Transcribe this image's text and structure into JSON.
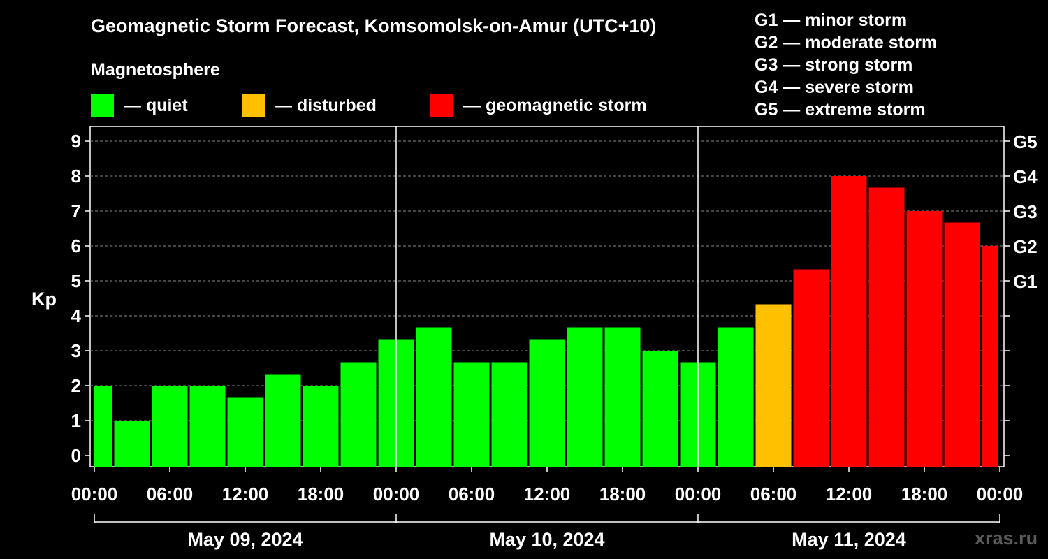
{
  "header": {
    "title": "Geomagnetic Storm Forecast, Komsomolsk-on-Amur (UTC+10)",
    "subtitle": "Magnetosphere"
  },
  "legend": [
    {
      "label": "— quiet",
      "color": "#00ff00"
    },
    {
      "label": "— disturbed",
      "color": "#ffc000"
    },
    {
      "label": "— geomagnetic storm",
      "color": "#ff0000"
    }
  ],
  "storm_levels": [
    "G1 — minor storm",
    "G2 — moderate storm",
    "G3 — strong storm",
    "G4 — severe storm",
    "G5 — extreme storm"
  ],
  "watermark": "xras.ru",
  "colors": {
    "quiet": "#00ff00",
    "disturbed": "#ffc000",
    "storm": "#ff0000",
    "background": "#000000",
    "axis": "#ffffff",
    "grid": "#888888"
  },
  "chart_data": {
    "type": "bar",
    "title": "Geomagnetic Storm Forecast, Komsomolsk-on-Amur (UTC+10)",
    "ylabel": "Kp",
    "ylim": [
      0,
      9
    ],
    "yticks": [
      0,
      1,
      2,
      3,
      4,
      5,
      6,
      7,
      8,
      9
    ],
    "right_axis_labels": [
      {
        "kp": 5,
        "label": "G1"
      },
      {
        "kp": 6,
        "label": "G2"
      },
      {
        "kp": 7,
        "label": "G3"
      },
      {
        "kp": 8,
        "label": "G4"
      },
      {
        "kp": 9,
        "label": "G5"
      }
    ],
    "grid": "horizontal dashed",
    "interval_hours": 3,
    "x_tick_labels": [
      "00:00",
      "06:00",
      "12:00",
      "18:00",
      "00:00",
      "06:00",
      "12:00",
      "18:00",
      "00:00",
      "06:00",
      "12:00",
      "18:00",
      "00:00"
    ],
    "days": [
      "May 09, 2024",
      "May 10, 2024",
      "May 11, 2024"
    ],
    "bars": [
      {
        "start": "May 09 00:00",
        "kp": 2.0,
        "status": "quiet"
      },
      {
        "start": "May 09 03:00",
        "kp": 1.0,
        "status": "quiet"
      },
      {
        "start": "May 09 06:00",
        "kp": 2.0,
        "status": "quiet"
      },
      {
        "start": "May 09 09:00",
        "kp": 2.0,
        "status": "quiet"
      },
      {
        "start": "May 09 12:00",
        "kp": 1.67,
        "status": "quiet"
      },
      {
        "start": "May 09 15:00",
        "kp": 2.33,
        "status": "quiet"
      },
      {
        "start": "May 09 18:00",
        "kp": 2.0,
        "status": "quiet"
      },
      {
        "start": "May 09 21:00",
        "kp": 2.67,
        "status": "quiet"
      },
      {
        "start": "May 10 00:00",
        "kp": 3.33,
        "status": "quiet"
      },
      {
        "start": "May 10 03:00",
        "kp": 3.67,
        "status": "quiet"
      },
      {
        "start": "May 10 06:00",
        "kp": 2.67,
        "status": "quiet"
      },
      {
        "start": "May 10 09:00",
        "kp": 2.67,
        "status": "quiet"
      },
      {
        "start": "May 10 12:00",
        "kp": 3.33,
        "status": "quiet"
      },
      {
        "start": "May 10 15:00",
        "kp": 3.67,
        "status": "quiet"
      },
      {
        "start": "May 10 18:00",
        "kp": 3.67,
        "status": "quiet"
      },
      {
        "start": "May 10 21:00",
        "kp": 3.0,
        "status": "quiet"
      },
      {
        "start": "May 11 00:00",
        "kp": 2.67,
        "status": "quiet"
      },
      {
        "start": "May 11 03:00",
        "kp": 3.67,
        "status": "quiet"
      },
      {
        "start": "May 11 06:00",
        "kp": 4.33,
        "status": "disturbed"
      },
      {
        "start": "May 11 09:00",
        "kp": 5.33,
        "status": "storm"
      },
      {
        "start": "May 11 12:00",
        "kp": 8.0,
        "status": "storm"
      },
      {
        "start": "May 11 15:00",
        "kp": 7.67,
        "status": "storm"
      },
      {
        "start": "May 11 18:00",
        "kp": 7.0,
        "status": "storm"
      },
      {
        "start": "May 11 21:00",
        "kp": 6.67,
        "status": "storm"
      },
      {
        "start": "May 12 00:00",
        "kp": 6.0,
        "status": "storm"
      }
    ]
  }
}
